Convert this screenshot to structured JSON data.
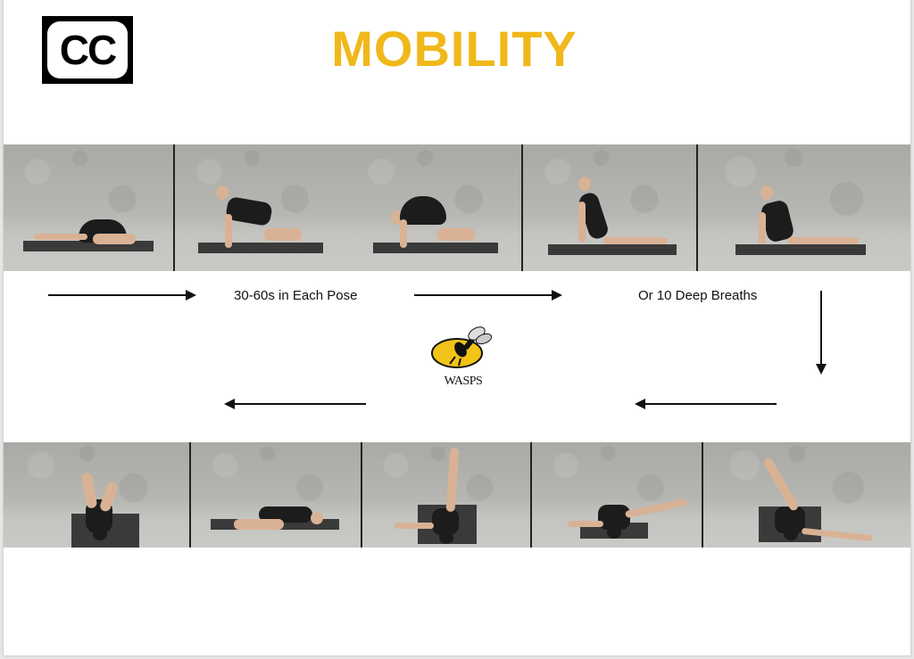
{
  "logo": {
    "text": "CC"
  },
  "title": "MOBILITY",
  "labels": {
    "time": "30-60s in Each Pose",
    "breaths": "Or 10 Deep Breaths"
  },
  "brand": {
    "name": "WASPS"
  },
  "colors": {
    "title": "#f0b81a",
    "wasp_yellow": "#f2c318",
    "shirt": "#1c1c1c",
    "skin": "#d9b295"
  },
  "poses": {
    "top_row": [
      "child-pose",
      "cow-pose",
      "cat-pose",
      "cobra-pose",
      "kneeling-upright-pose"
    ],
    "bottom_row": [
      "knees-to-chest",
      "spinal-twist",
      "single-leg-raise",
      "hip-opener",
      "leg-cross-stretch"
    ]
  }
}
